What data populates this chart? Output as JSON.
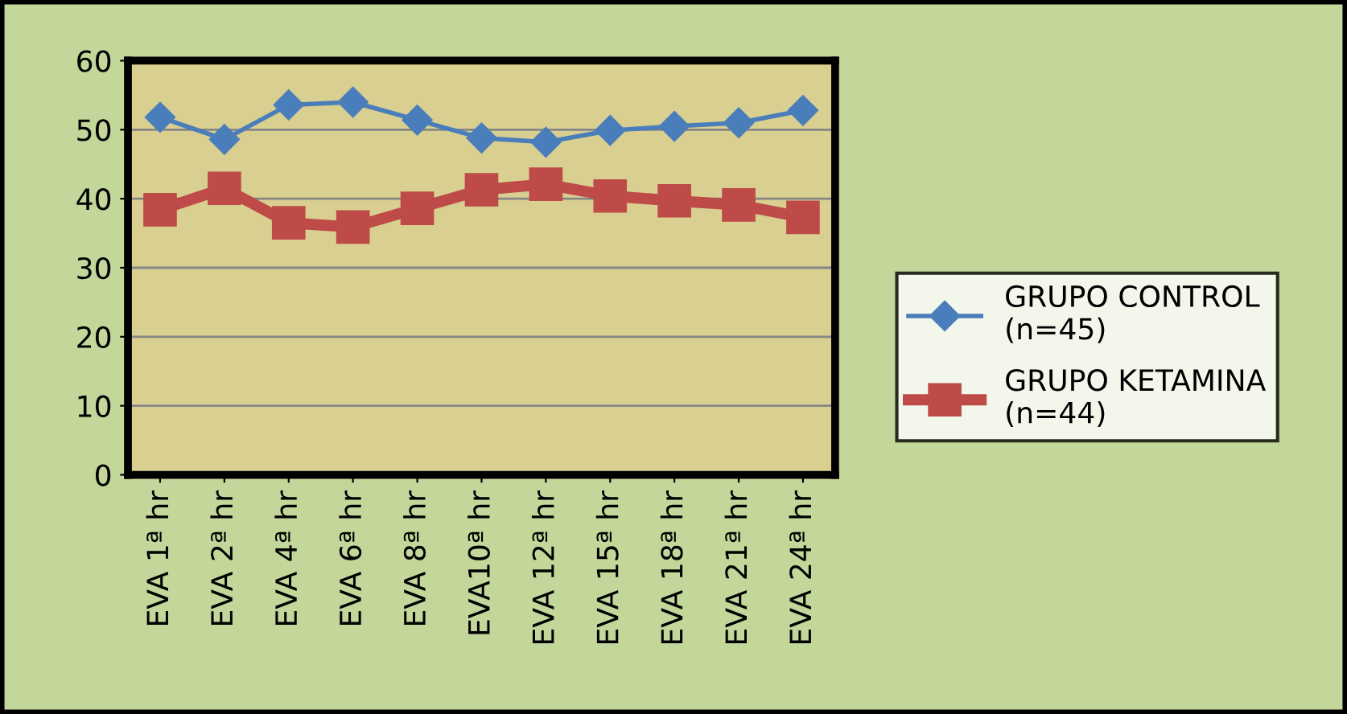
{
  "chart_data": {
    "type": "line",
    "categories": [
      "EVA 1ª hr",
      "EVA 2ª hr",
      "EVA 4ª hr",
      "EVA 6ª hr",
      "EVA 8ª hr",
      "EVA10ª hr",
      "EVA 12ª hr",
      "EVA 15ª hr",
      "EVA 18ª hr",
      "EVA 21ª hr",
      "EVA 24ª hr"
    ],
    "series": [
      {
        "name": "GRUPO CONTROL\n(n=45)",
        "color": "#4a7ebb",
        "marker": "diamond",
        "values": [
          51.8,
          48.6,
          53.6,
          54.0,
          51.4,
          48.8,
          48.2,
          49.9,
          50.5,
          51.0,
          52.8
        ]
      },
      {
        "name": "GRUPO KETAMINA\n(n=44)",
        "color": "#be4b48",
        "marker": "square",
        "values": [
          38.4,
          41.5,
          36.5,
          35.9,
          38.6,
          41.3,
          42.1,
          40.4,
          39.7,
          39.1,
          37.3
        ]
      }
    ],
    "ylim": [
      0,
      60
    ],
    "yticks": [
      0,
      10,
      20,
      30,
      40,
      50,
      60
    ],
    "grid": "y",
    "legend": "right",
    "line_style": "solid"
  }
}
